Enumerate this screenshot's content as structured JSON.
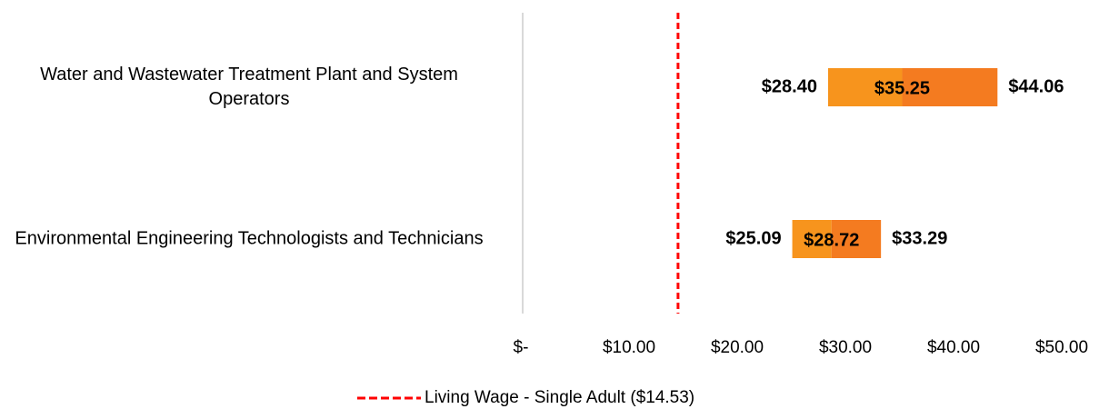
{
  "chart_data": {
    "type": "range_bar",
    "categories": [
      "Water and Wastewater Treatment Plant and System Operators",
      "Environmental Engineering Technologists and Technicians"
    ],
    "values": [
      [
        28.4,
        35.25,
        44.06
      ],
      [
        25.09,
        28.72,
        33.29
      ]
    ],
    "value_labels": [
      [
        "$28.40",
        "$35.25",
        "$44.06"
      ],
      [
        "$25.09",
        "$28.72",
        "$33.29"
      ]
    ],
    "colors": [
      "#f7941d",
      "#f47b20"
    ],
    "xlim": [
      0,
      50
    ],
    "xticks": [
      {
        "value": 0,
        "label": "$-"
      },
      {
        "value": 10,
        "label": "$10.00"
      },
      {
        "value": 20,
        "label": "$20.00"
      },
      {
        "value": 30,
        "label": "$30.00"
      },
      {
        "value": 40,
        "label": "$40.00"
      },
      {
        "value": 50,
        "label": "$50.00"
      }
    ],
    "reference_line": {
      "label": "Living Wage - Single Adult ($14.53)",
      "value": 14.53,
      "color": "#ff0000"
    },
    "legend": "bottom"
  }
}
